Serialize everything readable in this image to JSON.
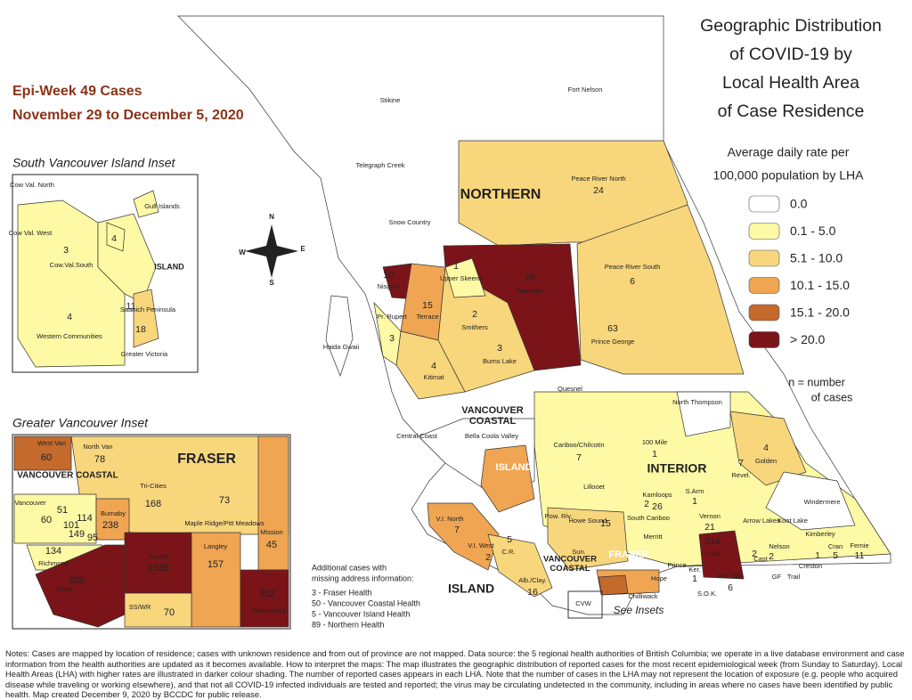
{
  "header": {
    "epi_week": "Epi-Week 49 Cases",
    "date_range": "November 29 to December 5, 2020",
    "title": [
      "Geographic Distribution",
      "of COVID-19 by",
      "Local Health Area",
      "of Case Residence"
    ]
  },
  "legend": {
    "subtitle": [
      "Average daily rate per",
      "100,000 population by LHA"
    ],
    "items": [
      {
        "label": "0.0",
        "color": "#ffffff"
      },
      {
        "label": "0.1 - 5.0",
        "color": "#fdf9a4"
      },
      {
        "label": "5.1 - 10.0",
        "color": "#f8d67c"
      },
      {
        "label": "10.1 - 15.0",
        "color": "#efa552"
      },
      {
        "label": "15.1 - 20.0",
        "color": "#c46a2c"
      },
      {
        "label": "> 20.0",
        "color": "#7b1418"
      }
    ],
    "note": [
      "n = number",
      "of cases"
    ]
  },
  "compass": {
    "n": "N",
    "e": "E",
    "s": "S",
    "w": "W"
  },
  "main_map": {
    "regions": [
      {
        "lines": [
          "NORTHERN"
        ]
      },
      {
        "lines": [
          "VANCOUVER",
          "COASTAL"
        ]
      },
      {
        "lines": [
          "INTERIOR"
        ]
      },
      {
        "lines": [
          "ISLAND"
        ]
      },
      {
        "lines": [
          "ISLAND"
        ]
      },
      {
        "lines": [
          "VANCOUVER",
          "COASTAL"
        ]
      },
      {
        "lines": [
          "FRASER"
        ]
      }
    ],
    "areas": [
      {
        "name": "Stikine"
      },
      {
        "name": "Fort Nelson"
      },
      {
        "name": "Telegraph Creek"
      },
      {
        "name": "Peace River North",
        "cases": 24
      },
      {
        "name": "Snow Country"
      },
      {
        "name": "Nisga'a",
        "cases": 10
      },
      {
        "name": "Upper Skeena",
        "cases": 1
      },
      {
        "name": "Nechako",
        "cases": 28
      },
      {
        "name": "Peace River South",
        "cases": 6
      },
      {
        "name": "Terrace",
        "cases": 15
      },
      {
        "name": "Pr. Rupert",
        "cases": 3
      },
      {
        "name": "Smithers",
        "cases": 2
      },
      {
        "name": "Prince George",
        "cases": 63
      },
      {
        "name": "Burns Lake",
        "cases": 3
      },
      {
        "name": "Haida Gwaii"
      },
      {
        "name": "Kitimat",
        "cases": 4
      },
      {
        "name": "Quesnel"
      },
      {
        "name": "Bella Coola Valley"
      },
      {
        "name": "Central Coast"
      },
      {
        "name": "North Thompson"
      },
      {
        "name": "100 Mile",
        "cases": 1
      },
      {
        "name": "Cariboo/Chilcotin",
        "cases": 7
      },
      {
        "name": "Golden",
        "cases": 4
      },
      {
        "name": "Revel.",
        "cases": 7
      },
      {
        "name": "Lillooet"
      },
      {
        "name": "Kamloops",
        "cases": 26
      },
      {
        "name": "Windermere"
      },
      {
        "name": "S.Arm",
        "cases": 1
      },
      {
        "name": "Vernon",
        "cases": 21
      },
      {
        "name": "Arrow Lakes"
      },
      {
        "name": "Koot Lake"
      },
      {
        "name": "V.I. North",
        "cases": 7
      },
      {
        "name": "Pow. Riv."
      },
      {
        "name": "Howe Sound",
        "cases": 15
      },
      {
        "name": "South Cariboo",
        "cases": 2
      },
      {
        "name": "Merritt"
      },
      {
        "name": "Kimberley"
      },
      {
        "name": "C.Ok",
        "cases": 314
      },
      {
        "name": "Nelson",
        "cases": 2
      },
      {
        "name": "V.I. West",
        "cases": 2
      },
      {
        "name": "C.R.",
        "cases": 5
      },
      {
        "name": "Cran",
        "cases": 5
      },
      {
        "name": "Fernie",
        "cases": 11
      },
      {
        "name": "Prince"
      },
      {
        "name": "Ker.",
        "cases": 1
      },
      {
        "name": "Ket. Val.",
        "cases": 6
      },
      {
        "name": "Cast",
        "cases": 2
      },
      {
        "name": "Creston",
        "cases": 1
      },
      {
        "name": "Alb./Clay.",
        "cases": 16
      },
      {
        "name": "Sun."
      },
      {
        "name": "Hope"
      },
      {
        "name": "Chilliwack"
      },
      {
        "name": "S.O.K."
      },
      {
        "name": "GF"
      },
      {
        "name": "Trail"
      },
      {
        "name": "CVW"
      }
    ],
    "see_insets": "See Insets"
  },
  "south_island_inset": {
    "title": "South Vancouver Island Inset",
    "regions": [
      {
        "lines": [
          "ISLAND"
        ]
      }
    ],
    "areas": [
      {
        "name": "Cow Val. North"
      },
      {
        "name": "Gulf Islands",
        "cases": 4
      },
      {
        "name": "Cow Val. West"
      },
      {
        "name": "Cow.Val.South",
        "cases": 3
      },
      {
        "name": "Saanich Peninsula",
        "cases": 11
      },
      {
        "name": "Western Communities",
        "cases": 4
      },
      {
        "name": "Greater Victoria",
        "cases": 18
      }
    ]
  },
  "vancouver_inset": {
    "title": "Greater Vancouver Inset",
    "regions": [
      {
        "lines": [
          "VANCOUVER COASTAL"
        ]
      },
      {
        "lines": [
          "FRASER"
        ]
      }
    ],
    "areas": [
      {
        "name": "West Van",
        "cases": 60
      },
      {
        "name": "North Van",
        "cases": 78
      },
      {
        "name": "Tri-Cities",
        "cases": 168
      },
      {
        "name": "Maple Ridge/Pitt Meadows",
        "cases": 73
      },
      {
        "name": "Mission",
        "cases": 45
      },
      {
        "name": "Vancouver",
        "cases": 60
      },
      {
        "cases": 51
      },
      {
        "cases": 101
      },
      {
        "cases": 114
      },
      {
        "cases": 149
      },
      {
        "cases": 95
      },
      {
        "name": "Burnaby",
        "cases": 238
      },
      {
        "name": "Richmond",
        "cases": 134
      },
      {
        "name": "Surrey",
        "cases": 1588
      },
      {
        "name": "Langley",
        "cases": 157
      },
      {
        "name": "Delta",
        "cases": 208
      },
      {
        "name": "SS/WR",
        "cases": 70
      },
      {
        "name": "Abbotsford",
        "cases": 352
      }
    ]
  },
  "missing_address": {
    "title": [
      "Additional cases with",
      "missing address information:"
    ],
    "lines": [
      "3 - Fraser Health",
      "50 - Vancouver Coastal Health",
      "5 - Vancouver Island Health",
      "89 - Northern Health"
    ]
  },
  "notes": "Notes: Cases are mapped by location of residence; cases with unknown residence and from out of province are not mapped. Data source: the 5 regional health authorities of British Columbia; we operate in a live database environment and case information from the health authorities are updated as it becomes available. How to interpret the maps: The map illustrates the geographic distribution of reported cases for the most recent epidemiological week (from Sunday to Saturday). Local Health Areas (LHA) with higher rates are illustrated in darker colour shading. The number of reported cases appears in each LHA. Note that the number of cases in the LHA may not represent the location of exposure (e.g. people who acquired disease while traveling or working elsewhere), and that not all COVID-19 infected individuals are tested and reported; the virus may be circulating undetected in the community, including in areas where no cases have been identified by public health. Map created December 9, 2020 by BCCDC for public release."
}
